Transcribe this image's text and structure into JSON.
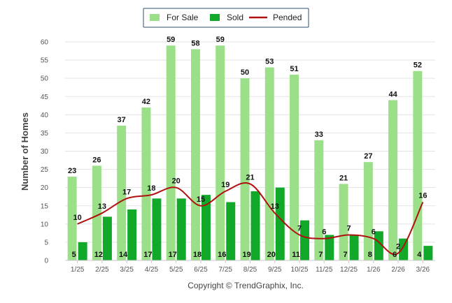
{
  "chart_data": {
    "type": "bar",
    "title": "",
    "xlabel": "",
    "ylabel": "Number of Homes",
    "ylim": [
      0,
      60
    ],
    "yticks": [
      0,
      5,
      10,
      15,
      20,
      25,
      30,
      35,
      40,
      45,
      50,
      55,
      60
    ],
    "grid": true,
    "legend_position": "top-center",
    "categories": [
      "1/25",
      "2/25",
      "3/25",
      "4/25",
      "5/25",
      "6/25",
      "7/25",
      "8/25",
      "9/25",
      "10/25",
      "11/25",
      "12/25",
      "1/26",
      "2/26",
      "3/26"
    ],
    "series": [
      {
        "name": "For Sale",
        "kind": "bar",
        "color": "#9be089",
        "values": [
          23,
          26,
          37,
          42,
          59,
          58,
          59,
          50,
          53,
          51,
          33,
          21,
          27,
          44,
          52
        ]
      },
      {
        "name": "Sold",
        "kind": "bar",
        "color": "#12a82a",
        "values": [
          5,
          12,
          14,
          17,
          17,
          18,
          16,
          19,
          20,
          11,
          7,
          7,
          8,
          6,
          4
        ]
      },
      {
        "name": "Pended",
        "kind": "line",
        "color": "#b01010",
        "values": [
          10,
          13,
          17,
          18,
          20,
          15,
          19,
          21,
          13,
          7,
          6,
          7,
          6,
          2,
          16
        ]
      }
    ],
    "footer": "Copyright © TrendGraphix, Inc."
  }
}
